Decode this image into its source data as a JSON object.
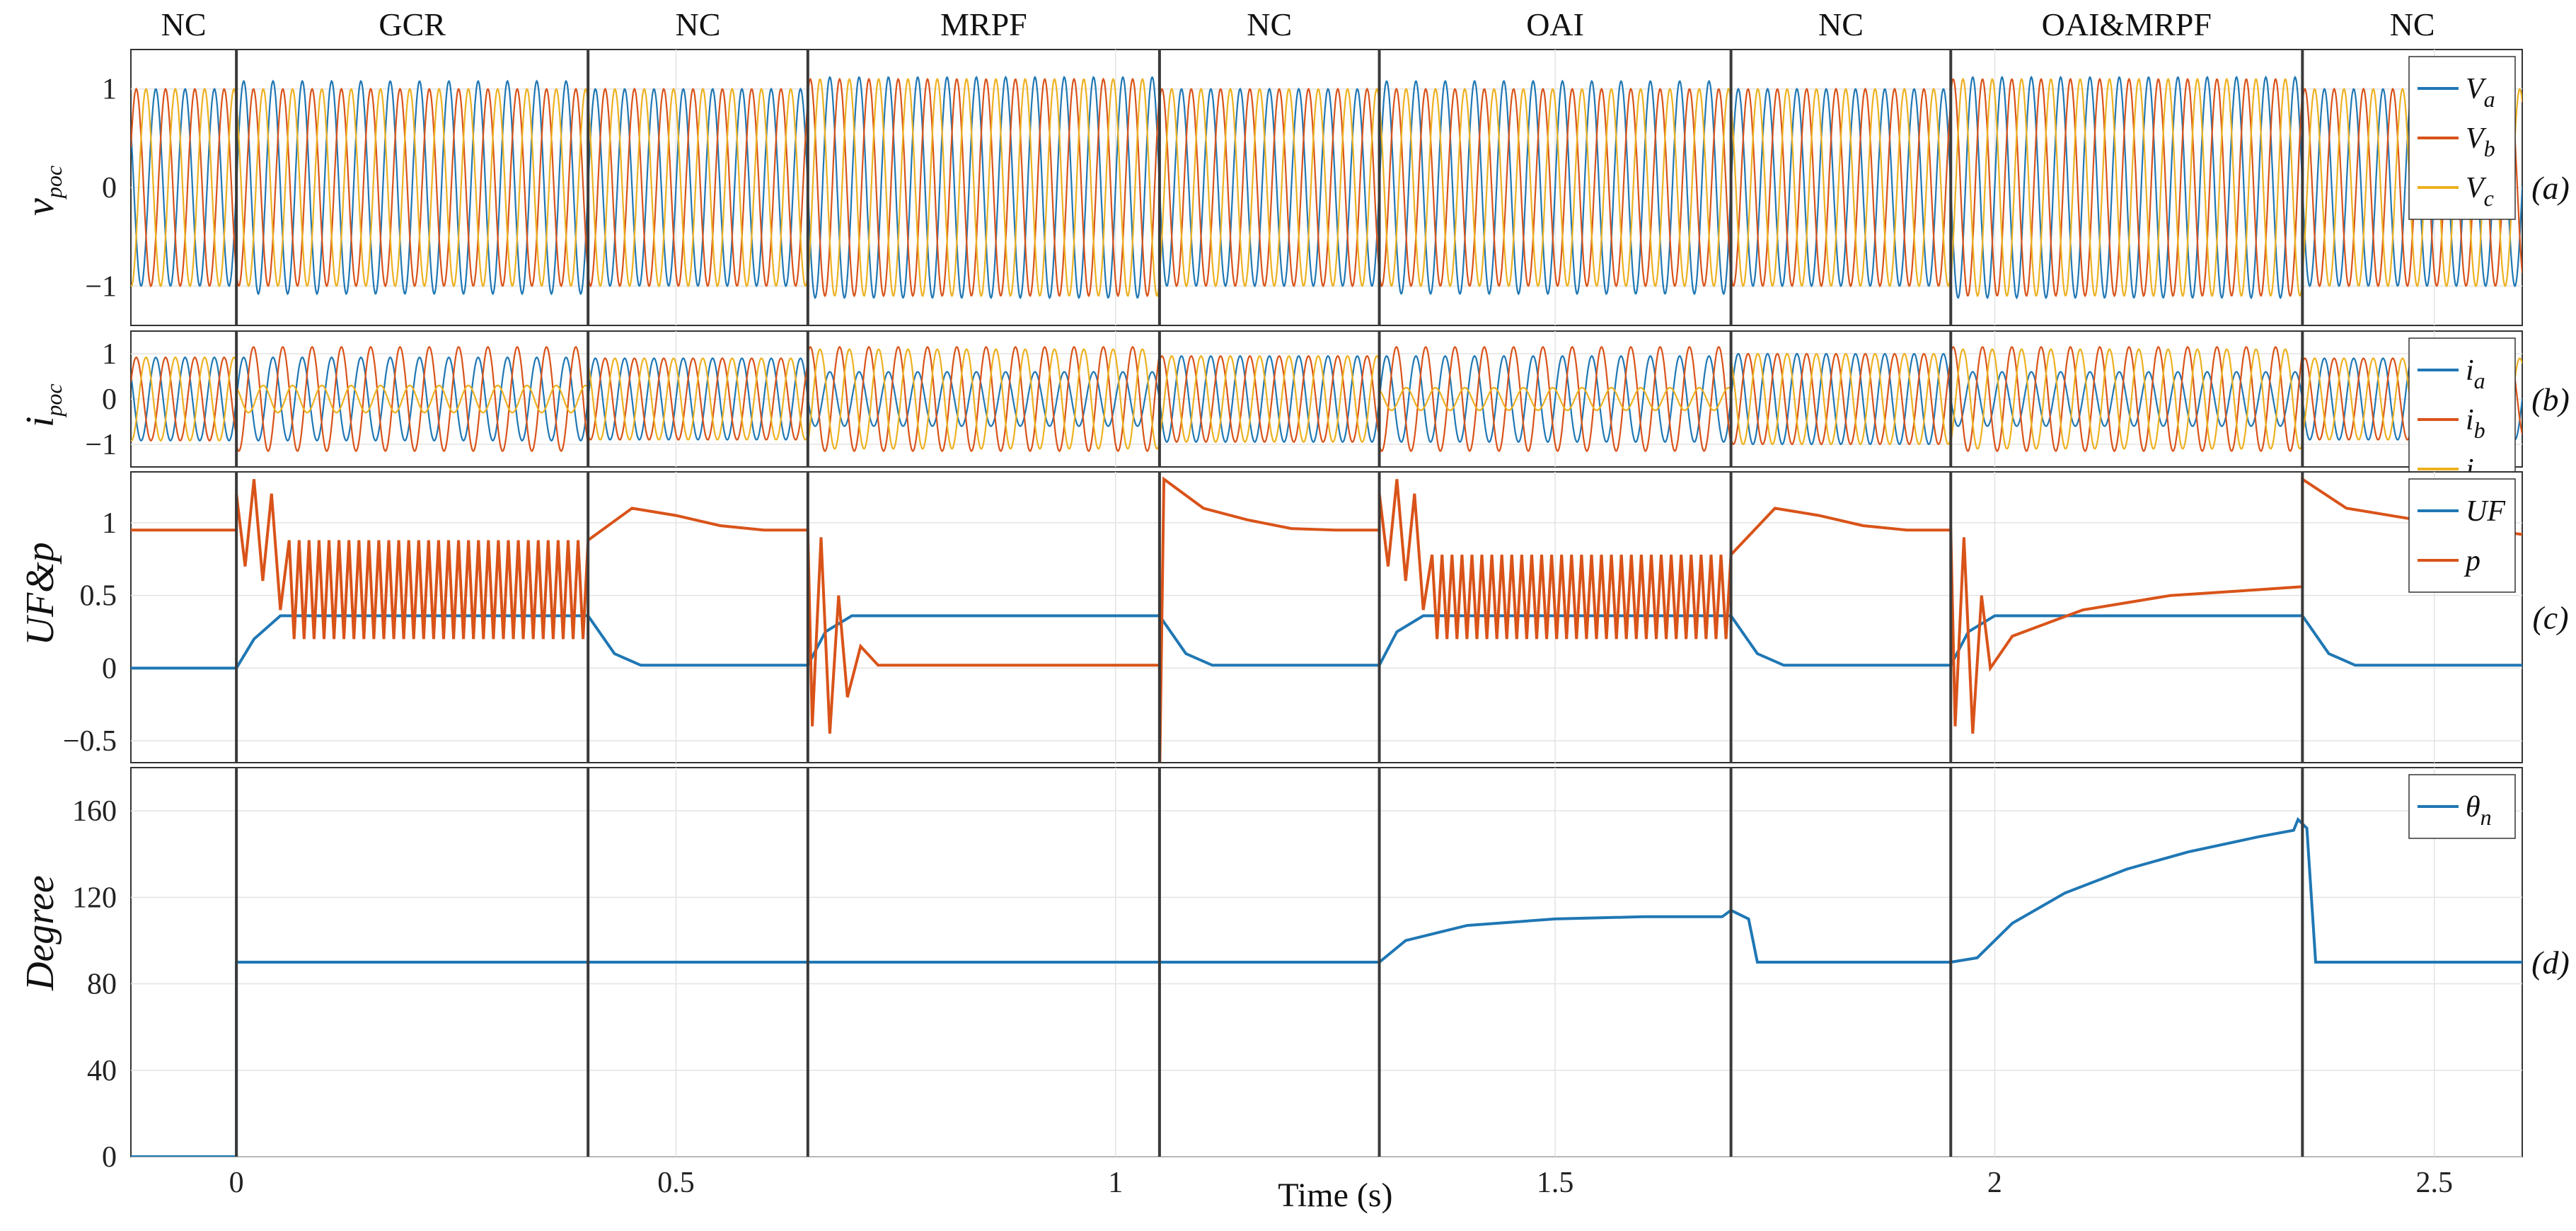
{
  "chart_data": {
    "type": "line",
    "x_range": [
      -0.12,
      2.6
    ],
    "x_ticks": [
      0,
      0.5,
      1,
      1.5,
      2,
      2.5
    ],
    "x_tick_labels": [
      "0",
      "0.5",
      "1",
      "1.5",
      "2",
      "2.5"
    ],
    "xlabel": "Time (s)",
    "segments": [
      {
        "label": "NC",
        "start": -0.12,
        "end": 0.0
      },
      {
        "label": "GCR",
        "start": 0.0,
        "end": 0.4
      },
      {
        "label": "NC",
        "start": 0.4,
        "end": 0.65
      },
      {
        "label": "MRPF",
        "start": 0.65,
        "end": 1.05
      },
      {
        "label": "NC",
        "start": 1.05,
        "end": 1.3
      },
      {
        "label": "OAI",
        "start": 1.3,
        "end": 1.7
      },
      {
        "label": "NC",
        "start": 1.7,
        "end": 1.95
      },
      {
        "label": "OAI&MRPF",
        "start": 1.95,
        "end": 2.35
      },
      {
        "label": "NC",
        "start": 2.35,
        "end": 2.6
      }
    ],
    "panels": [
      {
        "id": "a",
        "panel_label": "(a)",
        "ylabel": "v",
        "ylabel_sub": "poc",
        "ylim": [
          -1.4,
          1.4
        ],
        "yticks": [
          -1,
          0,
          1
        ],
        "ytick_labels": [
          "−1",
          "0",
          "1"
        ],
        "frequency_hz": 30,
        "series": [
          {
            "name": "V",
            "sub": "a",
            "color": "#1f77b4",
            "phase_deg": 0,
            "segment_amplitudes": [
              1.0,
              1.08,
              1.0,
              1.12,
              1.0,
              1.08,
              1.0,
              1.12,
              1.0
            ]
          },
          {
            "name": "V",
            "sub": "b",
            "color": "#d95319",
            "phase_deg": -120,
            "segment_amplitudes": [
              1.0,
              1.0,
              1.0,
              1.1,
              1.0,
              1.0,
              1.0,
              1.1,
              1.0
            ]
          },
          {
            "name": "V",
            "sub": "c",
            "color": "#edb120",
            "phase_deg": 120,
            "segment_amplitudes": [
              1.0,
              1.0,
              1.0,
              1.1,
              1.0,
              1.0,
              1.0,
              1.1,
              1.0
            ]
          }
        ]
      },
      {
        "id": "b",
        "panel_label": "(b)",
        "ylabel": "i",
        "ylabel_sub": "poc",
        "ylim": [
          -1.5,
          1.5
        ],
        "yticks": [
          -1,
          0,
          1
        ],
        "ytick_labels": [
          "−1",
          "0",
          "1"
        ],
        "frequency_hz": 30,
        "series": [
          {
            "name": "i",
            "sub": "a",
            "color": "#1f77b4",
            "phase_deg": 0,
            "segment_amplitudes": [
              0.92,
              0.92,
              0.9,
              0.6,
              0.95,
              0.95,
              1.0,
              0.6,
              0.9
            ]
          },
          {
            "name": "i",
            "sub": "b",
            "color": "#d95319",
            "phase_deg": -120,
            "segment_amplitudes": [
              0.92,
              1.15,
              0.9,
              1.15,
              0.95,
              1.15,
              1.0,
              1.15,
              0.9
            ]
          },
          {
            "name": "i",
            "sub": "c",
            "color": "#edb120",
            "phase_deg": 120,
            "segment_amplitudes": [
              0.92,
              0.3,
              0.9,
              1.1,
              0.95,
              0.25,
              1.0,
              1.1,
              0.9
            ]
          }
        ]
      },
      {
        "id": "c",
        "panel_label": "(c)",
        "ylabel": "UF&p",
        "ylim": [
          -0.65,
          1.35
        ],
        "yticks": [
          -0.5,
          0,
          0.5,
          1
        ],
        "ytick_labels": [
          "−0.5",
          "0",
          "0.5",
          "1"
        ],
        "series": [
          {
            "name": "UF",
            "color": "#1f77b4",
            "points": [
              [
                -0.12,
                0.0
              ],
              [
                0.0,
                0.0
              ],
              [
                0.02,
                0.2
              ],
              [
                0.05,
                0.36
              ],
              [
                0.4,
                0.36
              ],
              [
                0.43,
                0.1
              ],
              [
                0.46,
                0.02
              ],
              [
                0.65,
                0.02
              ],
              [
                0.67,
                0.25
              ],
              [
                0.7,
                0.36
              ],
              [
                1.05,
                0.36
              ],
              [
                1.08,
                0.1
              ],
              [
                1.11,
                0.02
              ],
              [
                1.3,
                0.02
              ],
              [
                1.32,
                0.25
              ],
              [
                1.35,
                0.36
              ],
              [
                1.7,
                0.36
              ],
              [
                1.73,
                0.1
              ],
              [
                1.76,
                0.02
              ],
              [
                1.95,
                0.02
              ],
              [
                1.97,
                0.25
              ],
              [
                2.0,
                0.36
              ],
              [
                2.35,
                0.36
              ],
              [
                2.38,
                0.1
              ],
              [
                2.41,
                0.02
              ],
              [
                2.6,
                0.02
              ]
            ]
          },
          {
            "name": "p",
            "color": "#d95319",
            "points": [
              [
                -0.12,
                0.95
              ],
              [
                0.0,
                0.95
              ],
              [
                0.0,
                1.2
              ],
              [
                0.01,
                0.7
              ],
              [
                0.02,
                1.3
              ],
              [
                0.03,
                0.6
              ],
              [
                0.04,
                1.2
              ],
              [
                0.05,
                0.4
              ],
              [
                0.06,
                0.9
              ],
              [
                0.4,
                0.9
              ],
              [
                0.4,
                1.3
              ],
              [
                0.45,
                1.1
              ],
              [
                0.5,
                1.05
              ],
              [
                0.55,
                0.98
              ],
              [
                0.6,
                0.95
              ],
              [
                0.65,
                0.95
              ],
              [
                0.655,
                -0.4
              ],
              [
                0.665,
                0.9
              ],
              [
                0.675,
                -0.45
              ],
              [
                0.685,
                0.5
              ],
              [
                0.695,
                -0.2
              ],
              [
                0.71,
                0.15
              ],
              [
                0.73,
                0.02
              ],
              [
                1.05,
                0.02
              ],
              [
                1.05,
                -0.8
              ],
              [
                1.055,
                1.3
              ],
              [
                1.1,
                1.1
              ],
              [
                1.15,
                1.02
              ],
              [
                1.2,
                0.96
              ],
              [
                1.25,
                0.95
              ],
              [
                1.3,
                0.95
              ],
              [
                1.3,
                1.2
              ],
              [
                1.31,
                0.7
              ],
              [
                1.32,
                1.3
              ],
              [
                1.33,
                0.6
              ],
              [
                1.34,
                1.2
              ],
              [
                1.35,
                0.4
              ],
              [
                1.36,
                0.78
              ],
              [
                1.7,
                0.78
              ],
              [
                1.7,
                1.3
              ],
              [
                1.75,
                1.1
              ],
              [
                1.8,
                1.05
              ],
              [
                1.85,
                0.98
              ],
              [
                1.9,
                0.95
              ],
              [
                1.95,
                0.95
              ],
              [
                1.955,
                -0.4
              ],
              [
                1.965,
                0.9
              ],
              [
                1.975,
                -0.45
              ],
              [
                1.985,
                0.5
              ],
              [
                1.995,
                0.0
              ],
              [
                2.02,
                0.22
              ],
              [
                2.1,
                0.4
              ],
              [
                2.2,
                0.5
              ],
              [
                2.3,
                0.54
              ],
              [
                2.35,
                0.56
              ],
              [
                2.35,
                1.3
              ],
              [
                2.4,
                1.1
              ],
              [
                2.5,
                1.0
              ],
              [
                2.6,
                0.92
              ]
            ]
          }
        ],
        "oscillations": [
          {
            "series": "p",
            "x_start": 0.06,
            "x_end": 0.4,
            "low": 0.2,
            "high": 0.88,
            "cycles": 30
          },
          {
            "series": "p",
            "x_start": 1.36,
            "x_end": 1.7,
            "low": 0.2,
            "high": 0.78,
            "cycles": 30
          }
        ]
      },
      {
        "id": "d",
        "panel_label": "(d)",
        "ylabel": "Degree",
        "ylim": [
          0,
          180
        ],
        "yticks": [
          0,
          40,
          80,
          120,
          160
        ],
        "ytick_labels": [
          "0",
          "40",
          "80",
          "120",
          "160"
        ],
        "series": [
          {
            "name": "θ",
            "sub": "n",
            "color": "#1f77b4",
            "points": [
              [
                -0.12,
                0
              ],
              [
                0.0,
                0
              ],
              [
                0.0,
                90
              ],
              [
                1.3,
                90
              ],
              [
                1.33,
                100
              ],
              [
                1.4,
                107
              ],
              [
                1.5,
                110
              ],
              [
                1.6,
                111
              ],
              [
                1.69,
                111
              ],
              [
                1.7,
                114
              ],
              [
                1.72,
                110
              ],
              [
                1.73,
                90
              ],
              [
                1.95,
                90
              ],
              [
                1.98,
                92
              ],
              [
                2.02,
                108
              ],
              [
                2.08,
                122
              ],
              [
                2.15,
                133
              ],
              [
                2.22,
                141
              ],
              [
                2.3,
                148
              ],
              [
                2.34,
                151
              ],
              [
                2.345,
                156
              ],
              [
                2.355,
                152
              ],
              [
                2.365,
                90
              ],
              [
                2.6,
                90
              ]
            ]
          }
        ]
      }
    ]
  }
}
